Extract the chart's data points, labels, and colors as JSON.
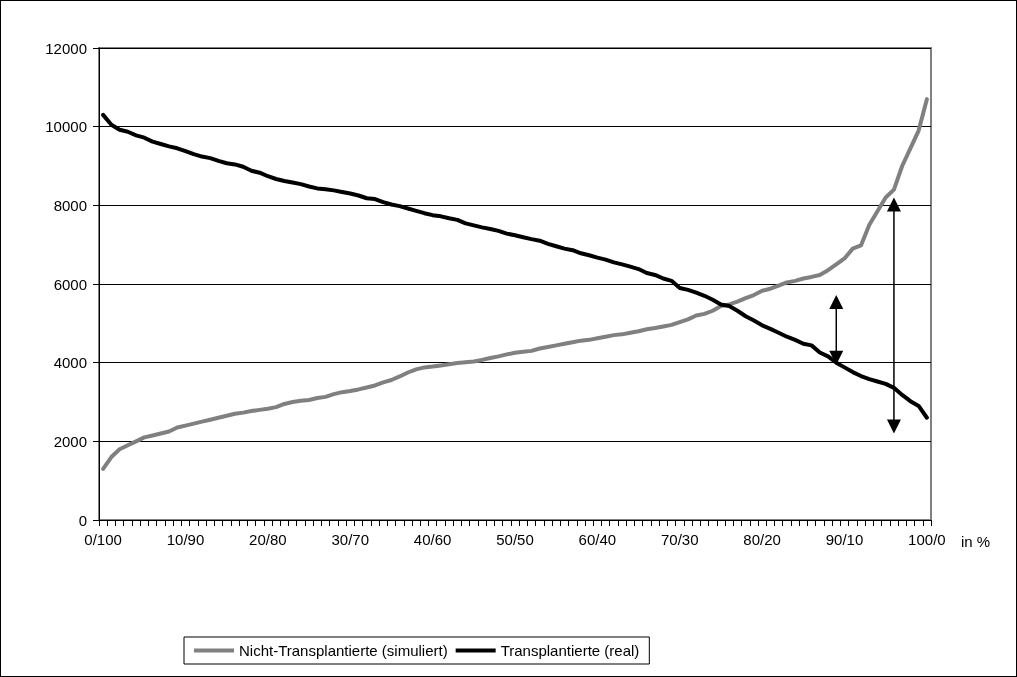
{
  "chart_data": {
    "type": "line",
    "xlabel": "in %",
    "categories": [
      "0/100",
      null,
      null,
      null,
      null,
      null,
      null,
      null,
      null,
      null,
      "10/90",
      null,
      null,
      null,
      null,
      null,
      null,
      null,
      null,
      null,
      "20/80",
      null,
      null,
      null,
      null,
      null,
      null,
      null,
      null,
      null,
      "30/70",
      null,
      null,
      null,
      null,
      null,
      null,
      null,
      null,
      null,
      "40/60",
      null,
      null,
      null,
      null,
      null,
      null,
      null,
      null,
      null,
      "50/50",
      null,
      null,
      null,
      null,
      null,
      null,
      null,
      null,
      null,
      "60/40",
      null,
      null,
      null,
      null,
      null,
      null,
      null,
      null,
      null,
      "70/30",
      null,
      null,
      null,
      null,
      null,
      null,
      null,
      null,
      null,
      "80/20",
      null,
      null,
      null,
      null,
      null,
      null,
      null,
      null,
      null,
      "90/10",
      null,
      null,
      null,
      null,
      null,
      null,
      null,
      null,
      null,
      "100/0"
    ],
    "series": [
      {
        "name": "Nicht-Transplantierte (simuliert)",
        "color": "#808080",
        "values": [
          1300,
          1600,
          1800,
          1900,
          2000,
          2100,
          2150,
          2200,
          2250,
          2350,
          2400,
          2450,
          2500,
          2550,
          2600,
          2650,
          2700,
          2730,
          2770,
          2800,
          2830,
          2870,
          2950,
          3000,
          3030,
          3050,
          3100,
          3130,
          3200,
          3250,
          3280,
          3320,
          3370,
          3420,
          3500,
          3560,
          3650,
          3750,
          3830,
          3880,
          3900,
          3930,
          3960,
          3990,
          4010,
          4030,
          4070,
          4120,
          4160,
          4210,
          4250,
          4280,
          4300,
          4360,
          4400,
          4440,
          4480,
          4520,
          4560,
          4580,
          4620,
          4660,
          4700,
          4720,
          4760,
          4800,
          4850,
          4880,
          4920,
          4960,
          5030,
          5100,
          5200,
          5240,
          5320,
          5440,
          5480,
          5550,
          5640,
          5720,
          5830,
          5880,
          5960,
          6040,
          6080,
          6140,
          6180,
          6230,
          6350,
          6500,
          6650,
          6900,
          6980,
          7500,
          7850,
          8200,
          8400,
          9000,
          9450,
          9900,
          10700
        ]
      },
      {
        "name": "Transplantierte (real)",
        "color": "#000000",
        "values": [
          10300,
          10050,
          9920,
          9870,
          9780,
          9720,
          9620,
          9560,
          9500,
          9450,
          9380,
          9300,
          9240,
          9200,
          9130,
          9070,
          9040,
          8980,
          8880,
          8830,
          8740,
          8670,
          8620,
          8580,
          8540,
          8480,
          8430,
          8410,
          8380,
          8340,
          8300,
          8250,
          8180,
          8160,
          8080,
          8020,
          7980,
          7920,
          7860,
          7800,
          7750,
          7720,
          7670,
          7630,
          7540,
          7490,
          7440,
          7400,
          7350,
          7280,
          7240,
          7190,
          7140,
          7100,
          7020,
          6960,
          6900,
          6860,
          6780,
          6730,
          6670,
          6620,
          6550,
          6500,
          6440,
          6380,
          6280,
          6230,
          6140,
          6080,
          5900,
          5850,
          5780,
          5700,
          5600,
          5480,
          5440,
          5320,
          5180,
          5070,
          4950,
          4860,
          4760,
          4660,
          4580,
          4480,
          4440,
          4260,
          4160,
          4000,
          3880,
          3760,
          3660,
          3580,
          3520,
          3460,
          3360,
          3180,
          3020,
          2900,
          2600
        ]
      }
    ],
    "ylim": [
      0,
      12000
    ],
    "yticks": [
      0,
      2000,
      4000,
      6000,
      8000,
      10000,
      12000
    ],
    "grid": "y",
    "legend": "bottom",
    "marker": "none",
    "line_style": "solid"
  }
}
